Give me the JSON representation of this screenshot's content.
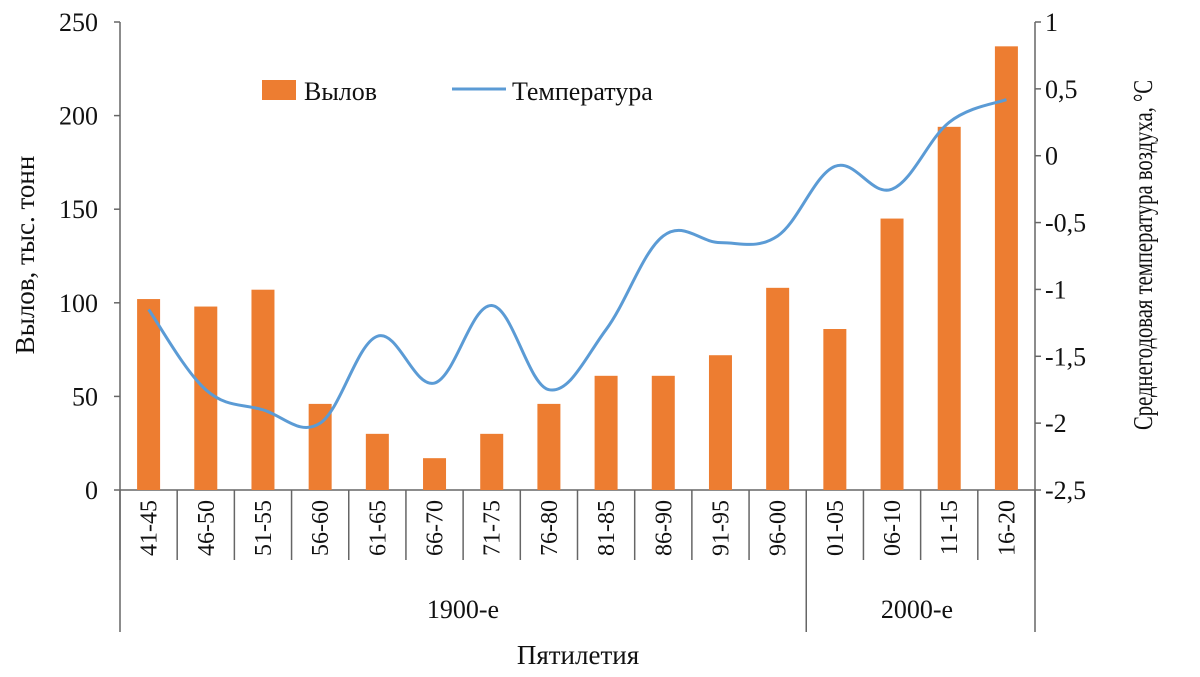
{
  "chart_data": {
    "type": "bar+line",
    "categories": [
      "41-45",
      "46-50",
      "51-55",
      "56-60",
      "61-65",
      "66-70",
      "71-75",
      "76-80",
      "81-85",
      "86-90",
      "91-95",
      "96-00",
      "01-05",
      "06-10",
      "11-15",
      "16-20"
    ],
    "groups": [
      {
        "label": "1900-е",
        "from": 0,
        "to": 11
      },
      {
        "label": "2000-е",
        "from": 12,
        "to": 15
      }
    ],
    "series": [
      {
        "name": "Вылов",
        "type": "bar",
        "axis": "left",
        "color": "#ED7D31",
        "values": [
          102,
          98,
          107,
          46,
          30,
          17,
          30,
          46,
          61,
          61,
          72,
          108,
          86,
          145,
          194,
          237
        ]
      },
      {
        "name": "Температура",
        "type": "line",
        "axis": "right",
        "color": "#5B9BD5",
        "values": [
          -1.15,
          -1.75,
          -1.9,
          -2.0,
          -1.35,
          -1.7,
          -1.12,
          -1.75,
          -1.3,
          -0.6,
          -0.65,
          -0.6,
          -0.08,
          -0.25,
          0.25,
          0.42
        ]
      }
    ],
    "ylabel_left": "Вылов, тыс. тонн",
    "ylabel_right": "Среднегодовая температура воздуха, °C",
    "xlabel": "Пятилетия",
    "ylim_left": [
      0,
      250
    ],
    "yticks_left": [
      "0",
      "50",
      "100",
      "150",
      "200",
      "250"
    ],
    "ylim_right": [
      -2.5,
      1
    ],
    "yticks_right": [
      "-2,5",
      "-2",
      "-1,5",
      "-1",
      "-0,5",
      "0",
      "0,5",
      "1"
    ],
    "legend": [
      "Вылов",
      "Температура"
    ],
    "legend_position": "top-left",
    "grid": false
  }
}
